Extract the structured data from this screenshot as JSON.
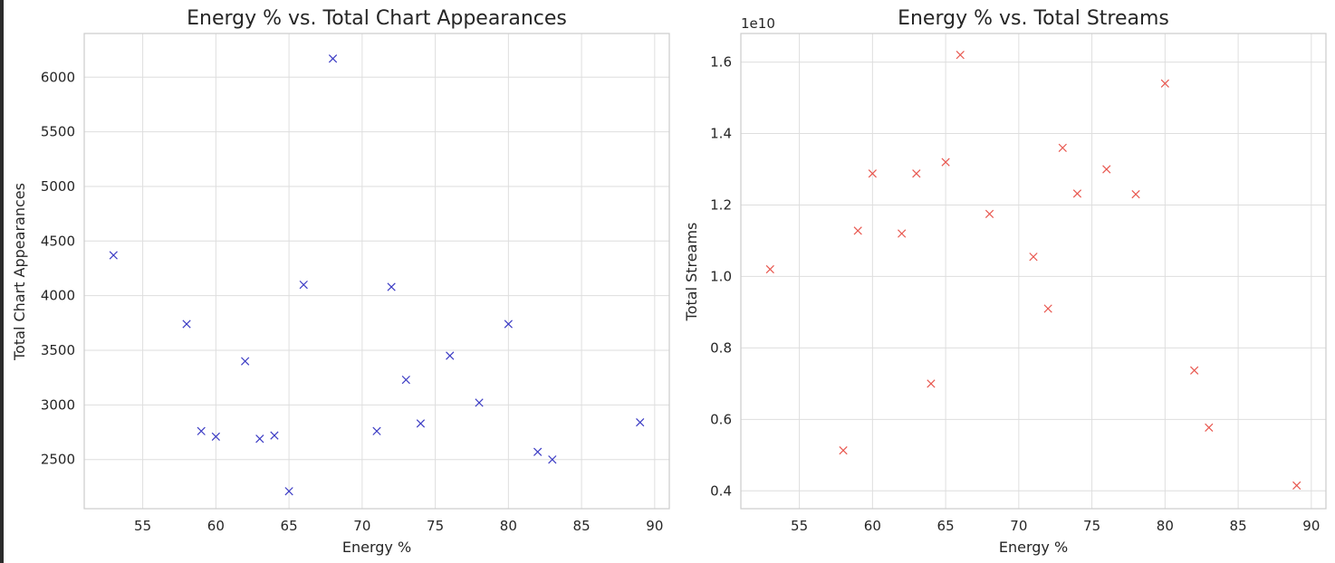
{
  "chart_data": [
    {
      "type": "scatter",
      "title": "Energy % vs. Total Chart Appearances",
      "xlabel": "Energy %",
      "ylabel": "Total Chart Appearances",
      "offset_text": "",
      "marker": "x",
      "color": "#3b3bc4",
      "grid": true,
      "xlim": [
        51,
        91
      ],
      "ylim": [
        2050,
        6400
      ],
      "xticks": [
        55,
        60,
        65,
        70,
        75,
        80,
        85,
        90
      ],
      "xtick_labels": [
        "55",
        "60",
        "65",
        "70",
        "75",
        "80",
        "85",
        "90"
      ],
      "yticks": [
        2500,
        3000,
        3500,
        4000,
        4500,
        5000,
        5500,
        6000
      ],
      "ytick_labels": [
        "2500",
        "3000",
        "3500",
        "4000",
        "4500",
        "5000",
        "5500",
        "6000"
      ],
      "points": [
        {
          "x": 53,
          "y": 4370
        },
        {
          "x": 58,
          "y": 3740
        },
        {
          "x": 59,
          "y": 2760
        },
        {
          "x": 60,
          "y": 2710
        },
        {
          "x": 62,
          "y": 3400
        },
        {
          "x": 63,
          "y": 2690
        },
        {
          "x": 64,
          "y": 2720
        },
        {
          "x": 65,
          "y": 2210
        },
        {
          "x": 66,
          "y": 4100
        },
        {
          "x": 68,
          "y": 6170
        },
        {
          "x": 71,
          "y": 2760
        },
        {
          "x": 72,
          "y": 4080
        },
        {
          "x": 73,
          "y": 3230
        },
        {
          "x": 74,
          "y": 2830
        },
        {
          "x": 76,
          "y": 3450
        },
        {
          "x": 78,
          "y": 3020
        },
        {
          "x": 80,
          "y": 3740
        },
        {
          "x": 82,
          "y": 2570
        },
        {
          "x": 83,
          "y": 2500
        },
        {
          "x": 89,
          "y": 2840
        }
      ]
    },
    {
      "type": "scatter",
      "title": "Energy % vs. Total Streams",
      "xlabel": "Energy %",
      "ylabel": "Total Streams",
      "offset_text": "1e10",
      "marker": "x",
      "color": "#e8574f",
      "grid": true,
      "xlim": [
        51,
        91
      ],
      "ylim": [
        0.35,
        1.68
      ],
      "xticks": [
        55,
        60,
        65,
        70,
        75,
        80,
        85,
        90
      ],
      "xtick_labels": [
        "55",
        "60",
        "65",
        "70",
        "75",
        "80",
        "85",
        "90"
      ],
      "yticks": [
        0.4,
        0.6,
        0.8,
        1.0,
        1.2,
        1.4,
        1.6
      ],
      "ytick_labels": [
        "0.4",
        "0.6",
        "0.8",
        "1.0",
        "1.2",
        "1.4",
        "1.6"
      ],
      "points": [
        {
          "x": 53,
          "y": 1.02
        },
        {
          "x": 58,
          "y": 0.513
        },
        {
          "x": 59,
          "y": 1.128
        },
        {
          "x": 60,
          "y": 1.288
        },
        {
          "x": 62,
          "y": 1.12
        },
        {
          "x": 63,
          "y": 1.288
        },
        {
          "x": 64,
          "y": 0.7
        },
        {
          "x": 65,
          "y": 1.32
        },
        {
          "x": 66,
          "y": 1.62
        },
        {
          "x": 68,
          "y": 1.175
        },
        {
          "x": 71,
          "y": 1.055
        },
        {
          "x": 72,
          "y": 0.91
        },
        {
          "x": 73,
          "y": 1.36
        },
        {
          "x": 74,
          "y": 1.232
        },
        {
          "x": 76,
          "y": 1.3
        },
        {
          "x": 78,
          "y": 1.23
        },
        {
          "x": 80,
          "y": 1.54
        },
        {
          "x": 82,
          "y": 0.737
        },
        {
          "x": 83,
          "y": 0.577
        },
        {
          "x": 89,
          "y": 0.415
        }
      ]
    }
  ]
}
